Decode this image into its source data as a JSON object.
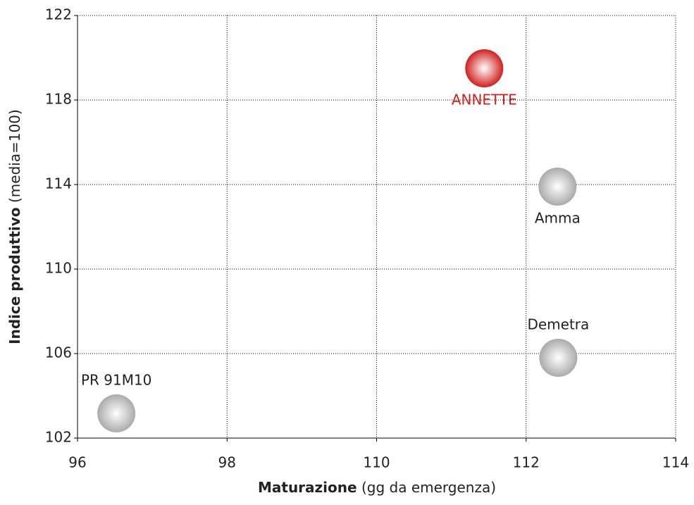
{
  "chart_data": {
    "type": "scatter",
    "x_label": {
      "bold": "Maturazione",
      "normal": "(gg da emergenza)"
    },
    "y_label": {
      "bold": "Indice produttivo",
      "normal": "(media=100)"
    },
    "xlim": [
      96,
      114
    ],
    "xticks": [
      96,
      98,
      110,
      112,
      114
    ],
    "ylim": [
      102,
      122
    ],
    "yticks": [
      102,
      106,
      110,
      114,
      118,
      122
    ],
    "grid": true,
    "points": [
      {
        "name": "ANNETTE",
        "x": 111.44,
        "y": 119.5,
        "color": "#d0201c",
        "label_position": "below"
      },
      {
        "name": "Amma",
        "x": 112.42,
        "y": 113.9,
        "color": "#aaaaaa",
        "label_position": "below"
      },
      {
        "name": "Demetra",
        "x": 112.43,
        "y": 105.8,
        "color": "#aaaaaa",
        "label_position": "above"
      },
      {
        "name": "PR 91M10",
        "x": 96.52,
        "y": 103.17,
        "color": "#aaaaaa",
        "label_position": "above"
      }
    ]
  }
}
